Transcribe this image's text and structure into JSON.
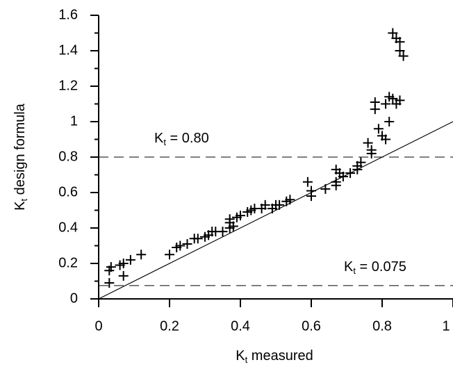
{
  "chart_data": {
    "type": "scatter",
    "x_label": {
      "main": "K",
      "sub": "t",
      "rest": " measured"
    },
    "y_label": {
      "main": "K",
      "sub": "t",
      "rest": " design formula"
    },
    "xlim": [
      0,
      1
    ],
    "ylim": [
      0,
      1.6
    ],
    "xticks": [
      0,
      0.2,
      0.4,
      0.6,
      0.8,
      1
    ],
    "yticks": [
      0,
      0.2,
      0.4,
      0.6,
      0.8,
      1,
      1.2,
      1.4,
      1.6
    ],
    "yminorticks": [
      0.1,
      0.3,
      0.5,
      0.7,
      0.9,
      1.1,
      1.3,
      1.5
    ],
    "color": "#000000",
    "reference_line": {
      "x": [
        0,
        1
      ],
      "y": [
        0,
        1
      ]
    },
    "hlines": [
      {
        "value": 0.8,
        "label": {
          "main": "K",
          "sub": "t",
          "rest": " = 0.80"
        }
      },
      {
        "value": 0.075,
        "label": {
          "main": "K",
          "sub": "t",
          "rest": " = 0.075"
        }
      }
    ],
    "x": [
      0.03,
      0.035,
      0.06,
      0.07,
      0.09,
      0.12,
      0.03,
      0.07,
      0.2,
      0.22,
      0.23,
      0.25,
      0.27,
      0.28,
      0.3,
      0.31,
      0.32,
      0.33,
      0.35,
      0.37,
      0.38,
      0.37,
      0.37,
      0.39,
      0.4,
      0.42,
      0.43,
      0.44,
      0.46,
      0.47,
      0.49,
      0.5,
      0.51,
      0.53,
      0.54,
      0.59,
      0.6,
      0.6,
      0.64,
      0.67,
      0.67,
      0.67,
      0.68,
      0.69,
      0.71,
      0.73,
      0.73,
      0.74,
      0.76,
      0.77,
      0.77,
      0.78,
      0.78,
      0.79,
      0.8,
      0.81,
      0.81,
      0.82,
      0.82,
      0.83,
      0.84,
      0.85,
      0.83,
      0.84,
      0.85,
      0.85,
      0.86
    ],
    "y": [
      0.16,
      0.18,
      0.19,
      0.2,
      0.22,
      0.25,
      0.09,
      0.13,
      0.25,
      0.29,
      0.3,
      0.31,
      0.34,
      0.34,
      0.35,
      0.36,
      0.38,
      0.38,
      0.38,
      0.4,
      0.41,
      0.43,
      0.45,
      0.46,
      0.47,
      0.49,
      0.5,
      0.51,
      0.51,
      0.53,
      0.51,
      0.53,
      0.53,
      0.55,
      0.56,
      0.66,
      0.61,
      0.58,
      0.62,
      0.64,
      0.66,
      0.73,
      0.71,
      0.69,
      0.71,
      0.73,
      0.75,
      0.77,
      0.88,
      0.84,
      0.82,
      1.11,
      1.07,
      0.96,
      0.92,
      0.9,
      1.1,
      1.0,
      1.14,
      1.13,
      1.1,
      1.12,
      1.5,
      1.47,
      1.45,
      1.4,
      1.37
    ]
  }
}
